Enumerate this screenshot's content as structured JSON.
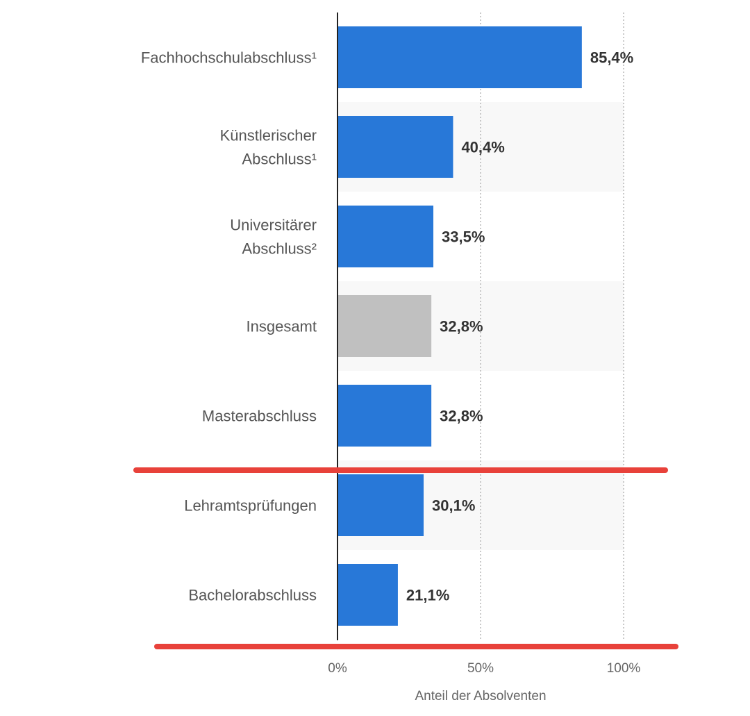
{
  "chart_data": {
    "type": "bar",
    "orientation": "horizontal",
    "categories": [
      [
        "Fachhochschulabschluss¹"
      ],
      [
        "Künstlerischer",
        "Abschluss¹"
      ],
      [
        "Universitärer",
        "Abschluss²"
      ],
      [
        "Insgesamt"
      ],
      [
        "Masterabschluss"
      ],
      [
        "Lehramtsprüfungen"
      ],
      [
        "Bachelorabschluss"
      ]
    ],
    "values": [
      85.4,
      40.4,
      33.5,
      32.8,
      32.8,
      30.1,
      21.1
    ],
    "value_labels": [
      "85,4%",
      "40,4%",
      "33,5%",
      "32,8%",
      "32,8%",
      "30,1%",
      "21,1%"
    ],
    "bar_colors": [
      "#2878d8",
      "#2878d8",
      "#2878d8",
      "#c0c0c0",
      "#2878d8",
      "#2878d8",
      "#2878d8"
    ],
    "xlim": [
      0,
      100
    ],
    "xticks": [
      0,
      50,
      100
    ],
    "xtick_labels": [
      "0%",
      "50%",
      "100%"
    ],
    "xlabel": "Anteil der Absolventen",
    "gridlines": "vertical-dotted",
    "row_banding": true,
    "annotations": [
      {
        "type": "highlight-line",
        "color": "#e8413a",
        "between_categories": [
          4,
          5
        ]
      },
      {
        "type": "highlight-line",
        "color": "#e8413a",
        "below_category": 6
      }
    ]
  }
}
